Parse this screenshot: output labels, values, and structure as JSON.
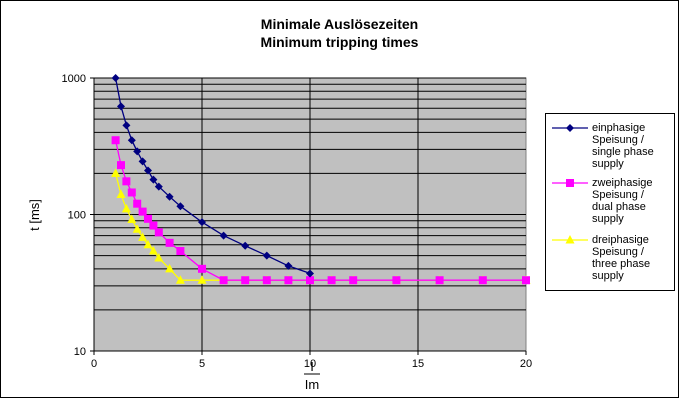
{
  "chart_data": {
    "type": "line",
    "title": "Minimale Auslösezeiten",
    "subtitle": "Minimum tripping times",
    "xlabel_numerator": "I",
    "xlabel_denominator": "Im",
    "ylabel": "t [ms]",
    "xlim": [
      0,
      20
    ],
    "ylim": [
      10,
      1000
    ],
    "yscale": "log",
    "grid": true,
    "legend_position": "right",
    "plot_background": "#c0c0c0",
    "x_ticks": [
      "0",
      "5",
      "10",
      "15",
      "20"
    ],
    "y_ticks": [
      "10",
      "100",
      "1000"
    ],
    "series": [
      {
        "name": "einphasige\nSpeisung /\nsingle phase\nsupply",
        "color": "#000080",
        "marker": "diamond",
        "x": [
          1,
          1.25,
          1.5,
          1.75,
          2,
          2.25,
          2.5,
          2.75,
          3,
          3.5,
          4,
          5,
          6,
          7,
          8,
          9,
          10
        ],
        "y": [
          1000,
          620,
          450,
          350,
          290,
          245,
          210,
          180,
          160,
          135,
          115,
          88,
          70,
          59,
          50,
          42,
          37
        ]
      },
      {
        "name": "zweiphasige\nSpeisung /\ndual phase\nsupply",
        "color": "#ff00ff",
        "marker": "square",
        "x": [
          1,
          1.25,
          1.5,
          1.75,
          2,
          2.25,
          2.5,
          2.75,
          3,
          3.5,
          4,
          5,
          6,
          7,
          8,
          9,
          10,
          11,
          12,
          14,
          16,
          18,
          20
        ],
        "y": [
          350,
          230,
          175,
          145,
          120,
          105,
          93,
          83,
          74,
          62,
          54,
          40,
          33,
          33,
          33,
          33,
          33,
          33,
          33,
          33,
          33,
          33,
          33
        ]
      },
      {
        "name": "dreiphasige\nSpeisung /\nthree phase\nsupply",
        "color": "#ffff00",
        "marker": "triangle",
        "x": [
          1,
          1.25,
          1.5,
          1.75,
          2,
          2.25,
          2.5,
          2.75,
          3,
          3.5,
          4,
          5,
          6,
          7,
          8,
          9,
          10,
          11,
          12,
          14,
          16,
          18,
          20
        ],
        "y": [
          200,
          140,
          110,
          92,
          78,
          68,
          60,
          54,
          48,
          40,
          33,
          33,
          33,
          33,
          33,
          33,
          33,
          33,
          33,
          33,
          33,
          33,
          33
        ]
      }
    ]
  }
}
